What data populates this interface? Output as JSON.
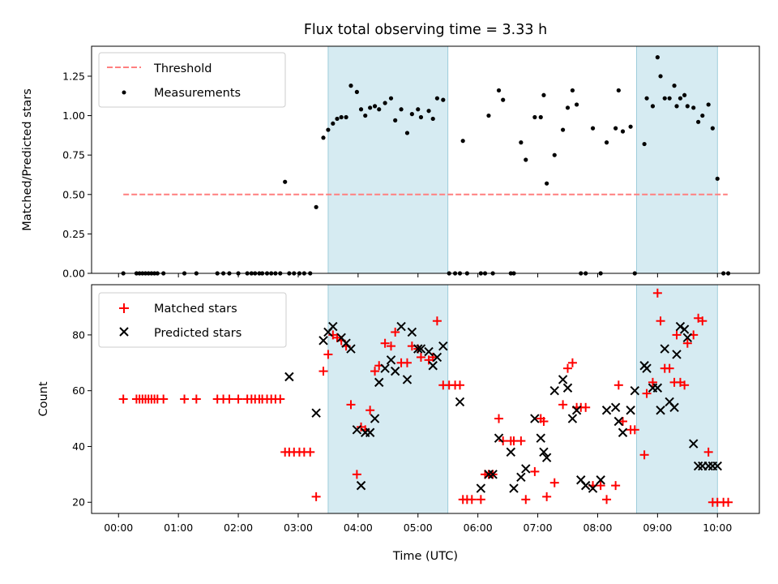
{
  "chart_data": [
    {
      "type": "scatter",
      "title": "Flux total observing time = 3.33 h",
      "xlabel": "",
      "ylabel": "Matched/Predicted stars",
      "xlim": [
        -0.45,
        10.7
      ],
      "ylim": [
        0,
        1.44
      ],
      "yticks": [
        0.0,
        0.25,
        0.5,
        0.75,
        1.0,
        1.25
      ],
      "ytick_labels": [
        "0.00",
        "0.25",
        "0.50",
        "0.75",
        "1.00",
        "1.25"
      ],
      "shaded_spans": [
        [
          3.5,
          5.5
        ],
        [
          8.65,
          10.0
        ]
      ],
      "threshold": {
        "name": "Threshold",
        "value": 0.5,
        "x_range": [
          0.08,
          10.17
        ],
        "color": "#ff7f7f"
      },
      "legend": {
        "loc": "upper left",
        "entries": [
          "Threshold",
          "Measurements"
        ]
      },
      "series": [
        {
          "name": "Measurements",
          "color": "#000000",
          "x": [
            0.08,
            0.3,
            0.35,
            0.4,
            0.45,
            0.5,
            0.55,
            0.6,
            0.65,
            0.75,
            1.1,
            1.3,
            1.65,
            1.75,
            1.85,
            2.0,
            2.15,
            2.22,
            2.28,
            2.35,
            2.4,
            2.48,
            2.55,
            2.62,
            2.7,
            2.78,
            2.85,
            2.93,
            3.02,
            3.1,
            3.2,
            3.3,
            3.42,
            3.5,
            3.58,
            3.65,
            3.72,
            3.8,
            3.88,
            3.98,
            4.05,
            4.12,
            4.2,
            4.28,
            4.35,
            4.45,
            4.55,
            4.62,
            4.72,
            4.82,
            4.9,
            5.0,
            5.05,
            5.18,
            5.25,
            5.32,
            5.42,
            5.52,
            5.62,
            5.7,
            5.75,
            5.82,
            6.05,
            6.12,
            6.18,
            6.25,
            6.35,
            6.42,
            6.55,
            6.6,
            6.72,
            6.8,
            6.95,
            7.05,
            7.1,
            7.15,
            7.28,
            7.42,
            7.5,
            7.58,
            7.65,
            7.72,
            7.8,
            7.92,
            8.05,
            8.15,
            8.3,
            8.35,
            8.42,
            8.55,
            8.62,
            8.78,
            8.82,
            8.92,
            9.0,
            9.05,
            9.12,
            9.2,
            9.28,
            9.32,
            9.38,
            9.45,
            9.5,
            9.6,
            9.68,
            9.75,
            9.85,
            9.92,
            10.0,
            10.1,
            10.18
          ],
          "y": [
            0.0,
            0.0,
            0.0,
            0.0,
            0.0,
            0.0,
            0.0,
            0.0,
            0.0,
            0.0,
            0.0,
            0.0,
            0.0,
            0.0,
            0.0,
            0.0,
            0.0,
            0.0,
            0.0,
            0.0,
            0.0,
            0.0,
            0.0,
            0.0,
            0.0,
            0.58,
            0.0,
            0.0,
            0.0,
            0.0,
            0.0,
            0.42,
            0.86,
            0.91,
            0.95,
            0.98,
            0.99,
            0.99,
            1.19,
            1.15,
            1.04,
            1.0,
            1.05,
            1.06,
            1.04,
            1.08,
            1.11,
            0.97,
            1.04,
            0.89,
            1.01,
            1.04,
            0.99,
            1.03,
            0.98,
            1.11,
            1.1,
            0.0,
            0.0,
            0.0,
            0.84,
            0.0,
            0.0,
            0.0,
            1.0,
            0.0,
            1.16,
            1.1,
            0.0,
            0.0,
            0.83,
            0.72,
            0.99,
            0.99,
            1.13,
            0.57,
            0.75,
            0.91,
            1.05,
            1.16,
            1.07,
            0.0,
            0.0,
            0.92,
            0.0,
            0.83,
            0.92,
            1.16,
            0.9,
            0.93,
            0.0,
            0.82,
            1.11,
            1.06,
            1.37,
            1.25,
            1.11,
            1.11,
            1.19,
            1.06,
            1.11,
            1.13,
            1.06,
            1.05,
            0.96,
            1.0,
            1.07,
            0.92,
            0.6,
            0.0,
            0.0
          ]
        }
      ]
    },
    {
      "type": "scatter",
      "title": "",
      "xlabel": "Time (UTC)",
      "ylabel": "Count",
      "xlim": [
        -0.45,
        10.7
      ],
      "ylim": [
        16,
        98
      ],
      "xticks": [
        0,
        1,
        2,
        3,
        4,
        5,
        6,
        7,
        8,
        9,
        10
      ],
      "xtick_labels": [
        "00:00",
        "01:00",
        "02:00",
        "03:00",
        "04:00",
        "05:00",
        "06:00",
        "07:00",
        "08:00",
        "09:00",
        "10:00"
      ],
      "yticks": [
        20,
        40,
        60,
        80
      ],
      "ytick_labels": [
        "20",
        "40",
        "60",
        "80"
      ],
      "shaded_spans": [
        [
          3.5,
          5.5
        ],
        [
          8.65,
          10.0
        ]
      ],
      "legend": {
        "loc": "upper left",
        "entries": [
          "Matched stars",
          "Predicted stars"
        ]
      },
      "series": [
        {
          "name": "Matched stars",
          "marker": "+",
          "color": "#ff0000",
          "x": [
            0.08,
            0.3,
            0.35,
            0.4,
            0.45,
            0.5,
            0.55,
            0.6,
            0.65,
            0.75,
            1.1,
            1.3,
            1.65,
            1.75,
            1.85,
            2.0,
            2.15,
            2.22,
            2.28,
            2.35,
            2.4,
            2.48,
            2.55,
            2.62,
            2.7,
            2.78,
            2.85,
            2.93,
            3.02,
            3.1,
            3.2,
            3.3,
            3.42,
            3.5,
            3.58,
            3.65,
            3.72,
            3.8,
            3.88,
            3.98,
            4.05,
            4.12,
            4.2,
            4.28,
            4.35,
            4.45,
            4.55,
            4.62,
            4.72,
            4.82,
            4.9,
            5.0,
            5.05,
            5.18,
            5.25,
            5.32,
            5.42,
            5.52,
            5.62,
            5.7,
            5.75,
            5.82,
            5.9,
            6.05,
            6.12,
            6.18,
            6.25,
            6.35,
            6.42,
            6.55,
            6.6,
            6.72,
            6.8,
            6.95,
            7.05,
            7.1,
            7.15,
            7.28,
            7.42,
            7.5,
            7.58,
            7.65,
            7.72,
            7.8,
            7.92,
            8.05,
            8.15,
            8.3,
            8.35,
            8.42,
            8.55,
            8.62,
            8.78,
            8.82,
            8.92,
            9.0,
            9.05,
            9.12,
            9.2,
            9.28,
            9.32,
            9.38,
            9.45,
            9.5,
            9.6,
            9.68,
            9.75,
            9.85,
            9.92,
            10.0,
            10.1,
            10.18
          ],
          "y": [
            57,
            57,
            57,
            57,
            57,
            57,
            57,
            57,
            57,
            57,
            57,
            57,
            57,
            57,
            57,
            57,
            57,
            57,
            57,
            57,
            57,
            57,
            57,
            57,
            57,
            38,
            38,
            38,
            38,
            38,
            38,
            22,
            67,
            73,
            80,
            79,
            78,
            76,
            55,
            30,
            47,
            46,
            53,
            67,
            69,
            77,
            76,
            81,
            70,
            70,
            76,
            75,
            72,
            71,
            72,
            85,
            62,
            62,
            62,
            62,
            21,
            21,
            21,
            21,
            30,
            30,
            30,
            50,
            42,
            42,
            42,
            42,
            21,
            31,
            50,
            49,
            22,
            27,
            55,
            68,
            70,
            54,
            54,
            54,
            26,
            26,
            21,
            26,
            62,
            49,
            46,
            46,
            37,
            59,
            63,
            95,
            85,
            68,
            68,
            63,
            80,
            63,
            62,
            77,
            80,
            86,
            85,
            38,
            20,
            20,
            20,
            20
          ]
        },
        {
          "name": "Predicted stars",
          "marker": "x",
          "color": "#000000",
          "x": [
            2.85,
            3.3,
            3.42,
            3.5,
            3.58,
            3.72,
            3.8,
            3.88,
            3.98,
            4.05,
            4.12,
            4.2,
            4.28,
            4.35,
            4.45,
            4.55,
            4.62,
            4.72,
            4.82,
            4.9,
            5.0,
            5.05,
            5.18,
            5.25,
            5.32,
            5.42,
            5.7,
            6.05,
            6.18,
            6.25,
            6.35,
            6.55,
            6.6,
            6.72,
            6.8,
            6.95,
            7.05,
            7.1,
            7.15,
            7.28,
            7.42,
            7.5,
            7.58,
            7.65,
            7.72,
            7.8,
            7.92,
            8.05,
            8.15,
            8.3,
            8.35,
            8.42,
            8.55,
            8.62,
            8.78,
            8.82,
            8.92,
            9.0,
            9.05,
            9.12,
            9.2,
            9.28,
            9.32,
            9.38,
            9.45,
            9.5,
            9.6,
            9.68,
            9.75,
            9.85,
            9.92,
            10.0
          ],
          "y": [
            65,
            52,
            78,
            81,
            83,
            79,
            77,
            75,
            46,
            26,
            45,
            45,
            50,
            63,
            68,
            71,
            67,
            83,
            64,
            81,
            75,
            75,
            74,
            69,
            72,
            76,
            56,
            25,
            30,
            30,
            43,
            38,
            25,
            29,
            32,
            50,
            43,
            38,
            36,
            60,
            64,
            61,
            50,
            53,
            28,
            26,
            25,
            28,
            53,
            54,
            49,
            45,
            53,
            60,
            69,
            68,
            61,
            61,
            53,
            75,
            56,
            54,
            73,
            83,
            82,
            79,
            41,
            33,
            33,
            33,
            33,
            33
          ]
        }
      ]
    }
  ]
}
